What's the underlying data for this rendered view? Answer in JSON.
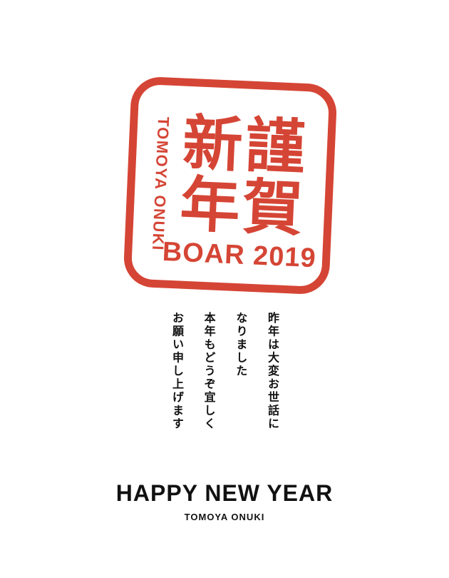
{
  "colors": {
    "stamp_red": "#d54535",
    "text": "#111111",
    "background": "#ffffff"
  },
  "stamp": {
    "kanji_top_right": "謹",
    "kanji_bottom_right": "賀",
    "kanji_top_left": "新",
    "kanji_bottom_left": "年",
    "side_name": "TOMOYA ONUKI",
    "year_line": "BOAR 2019"
  },
  "message": {
    "lines": [
      "昨年は大変お世話に",
      "なりました",
      "本年もどうぞ宜しく",
      "お願い申し上げます"
    ]
  },
  "footer": {
    "greeting": "HAPPY NEW YEAR",
    "name": "TOMOYA ONUKI"
  }
}
